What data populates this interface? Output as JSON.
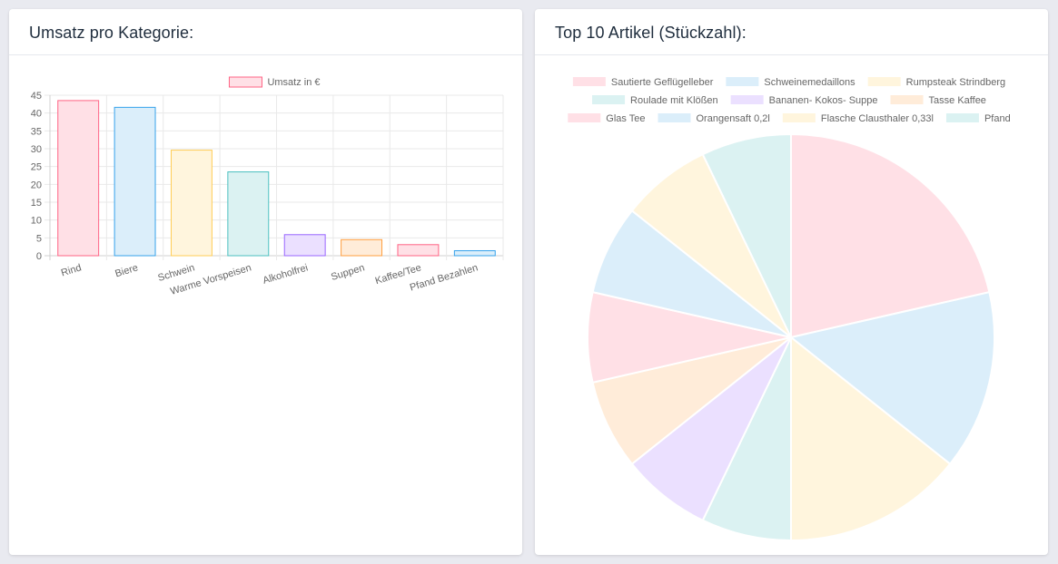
{
  "left_card": {
    "title": "Umsatz pro Kategorie:"
  },
  "right_card": {
    "title": "Top 10 Artikel (Stückzahl):"
  },
  "chart_data": [
    {
      "type": "bar",
      "title": "",
      "xlabel": "",
      "ylabel": "",
      "categories": [
        "Rind",
        "Biere",
        "Schwein",
        "Warme Vorspeisen",
        "Alkoholfrei",
        "Suppen",
        "Kaffee/Tee",
        "Pfand Bezahlen"
      ],
      "series": [
        {
          "name": "Umsatz in €",
          "values": [
            43.5,
            41.6,
            29.6,
            23.5,
            5.9,
            4.5,
            3.1,
            1.4
          ]
        }
      ],
      "ylim": [
        0,
        45
      ],
      "yticks": [
        0,
        5,
        10,
        15,
        20,
        25,
        30,
        35,
        40,
        45
      ],
      "grid": true,
      "legend_position": "top",
      "fill_colors": [
        "#ffe0e6",
        "#dbeefa",
        "#fff5dd",
        "#dbf2f2",
        "#ebe0ff",
        "#ffecd9",
        "#ffe0e6",
        "#dbeefa"
      ],
      "border_colors": [
        "#ff6384",
        "#36a2eb",
        "#ffcd56",
        "#4bc0c0",
        "#9966ff",
        "#ff9f40",
        "#ff6384",
        "#36a2eb"
      ]
    },
    {
      "type": "pie",
      "title": "",
      "categories": [
        "Sautierte Geflügelleber",
        "Schweinemedaillons",
        "Rumpsteak Strindberg",
        "Roulade mit Klößen",
        "Bananen- Kokos- Suppe",
        "Tasse Kaffee",
        "Glas Tee",
        "Orangensaft 0,2l",
        "Flasche Clausthaler 0,33l",
        "Pfand"
      ],
      "values": [
        6,
        4,
        4,
        2,
        2,
        2,
        2,
        2,
        2,
        2
      ],
      "legend_position": "top",
      "colors": [
        "#ffe0e6",
        "#dbeefa",
        "#fff5dd",
        "#dbf2f2",
        "#ebe0ff",
        "#ffecd9",
        "#ffe0e6",
        "#dbeefa",
        "#fff5dd",
        "#dbf2f2"
      ]
    }
  ]
}
